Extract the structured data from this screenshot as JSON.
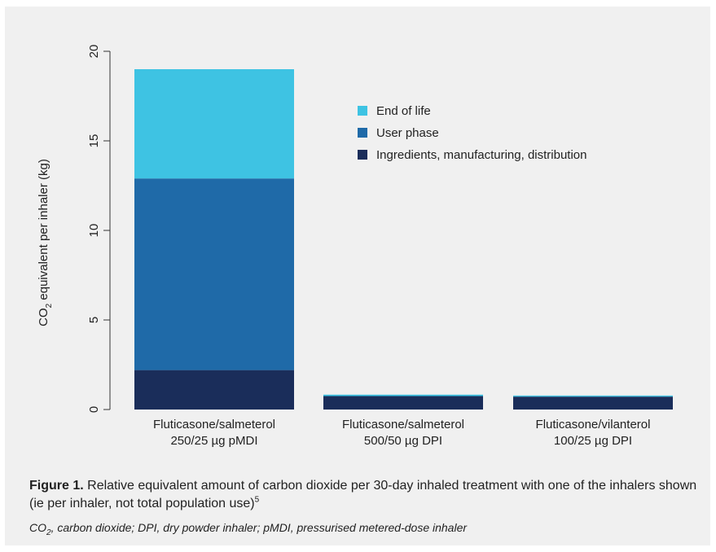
{
  "chart_data": {
    "type": "bar",
    "stacked": true,
    "categories": [
      [
        "Fluticasone/salmeterol",
        "250/25 µg pMDI"
      ],
      [
        "Fluticasone/salmeterol",
        "500/50 µg DPI"
      ],
      [
        "Fluticasone/vilanterol",
        "100/25  µg DPI"
      ]
    ],
    "series": [
      {
        "name": "Ingredients, manufacturing, distribution",
        "color": "#1a2d5a",
        "values": [
          2.2,
          0.75,
          0.72
        ]
      },
      {
        "name": "User phase",
        "color": "#1f6aa8",
        "values": [
          10.7,
          0.0,
          0.0
        ]
      },
      {
        "name": "End of life",
        "color": "#3ec3e3",
        "values": [
          6.1,
          0.08,
          0.06
        ]
      }
    ],
    "legend_order": [
      2,
      1,
      0
    ],
    "legend_position": "top-right",
    "ylabel": "CO2 equivalent per inhaler (kg)",
    "ylabel_main": "CO",
    "ylabel_sub": "2",
    "ylabel_rest": " equivalent per inhaler (kg)",
    "ylim": [
      0,
      20
    ],
    "yticks": [
      "0",
      "5",
      "10",
      "15",
      "20"
    ],
    "grid": false
  },
  "caption": {
    "figure_number": "Figure 1.",
    "text": " Relative equivalent amount of carbon dioxide per 30-day inhaled treatment with one of the inhalers shown (ie per inhaler, not total population use)",
    "superscript": "5"
  },
  "footnote": {
    "co": "CO",
    "sub": "2",
    "text": ", carbon dioxide; DPI, dry powder inhaler; pMDI, pressurised metered-dose inhaler"
  }
}
